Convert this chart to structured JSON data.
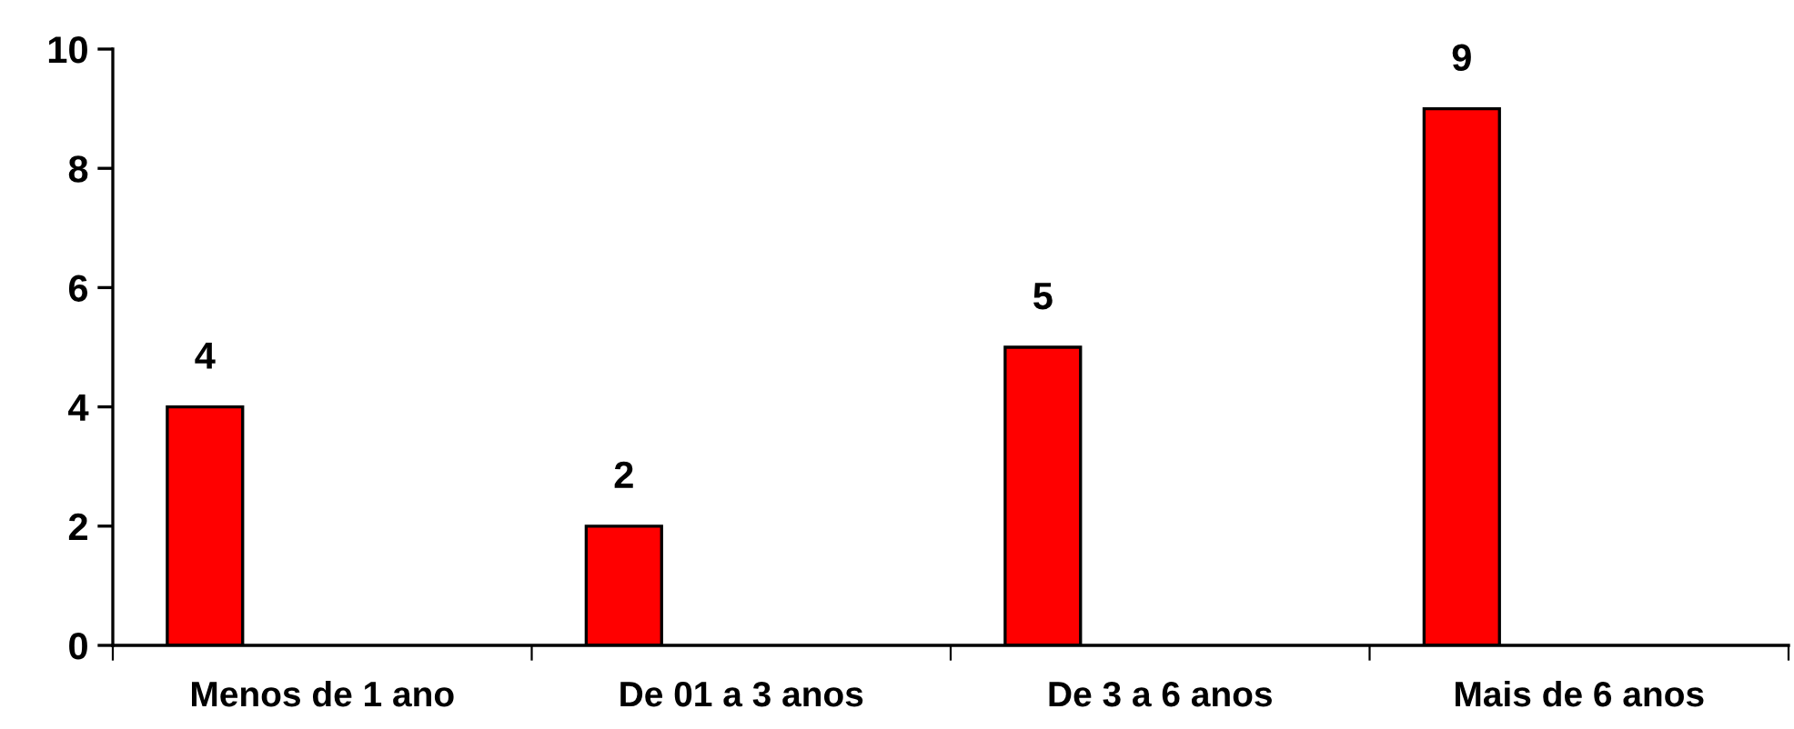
{
  "chart_data": {
    "type": "bar",
    "categories": [
      "Menos de 1 ano",
      "De 01 a 3 anos",
      "De 3 a 6 anos",
      "Mais de 6 anos"
    ],
    "values": [
      4,
      2,
      5,
      9
    ],
    "color": "#ff0000",
    "ylim": [
      0,
      10
    ],
    "yticks": [
      0,
      2,
      4,
      6,
      8,
      10
    ],
    "grid": false,
    "data_labels": true
  }
}
